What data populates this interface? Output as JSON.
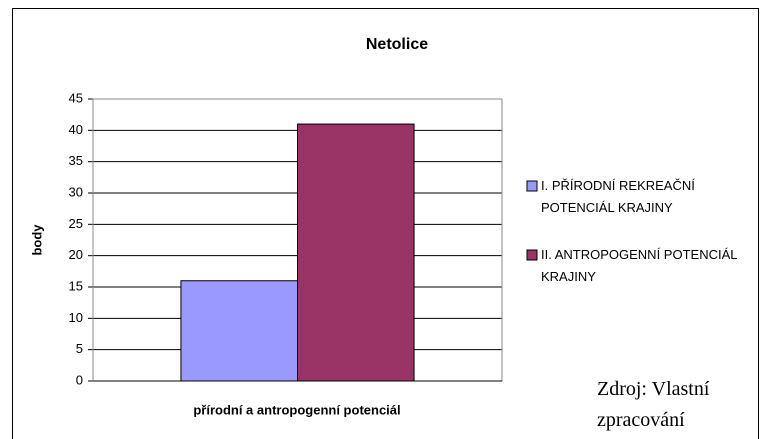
{
  "chart_data": {
    "type": "bar",
    "title": "Netolice",
    "y_label": "body",
    "x_label": "přírodní a antropogenní potenciál",
    "categories": [
      null
    ],
    "series": [
      {
        "name": "I. PŘÍRODNÍ REKREAČNÍ POTENCIÁL KRAJINY",
        "color": "#9999ff",
        "values": [
          16
        ]
      },
      {
        "name": "II. ANTROPOGENNÍ POTENCIÁL KRAJINY",
        "color": "#993366",
        "values": [
          41
        ]
      }
    ],
    "ylim": [
      0,
      45
    ],
    "yticks": [
      0,
      5,
      10,
      15,
      20,
      25,
      30,
      35,
      40,
      45
    ],
    "grid": true,
    "legend": "right"
  },
  "source": "Zdroj: Vlastní zpracování"
}
